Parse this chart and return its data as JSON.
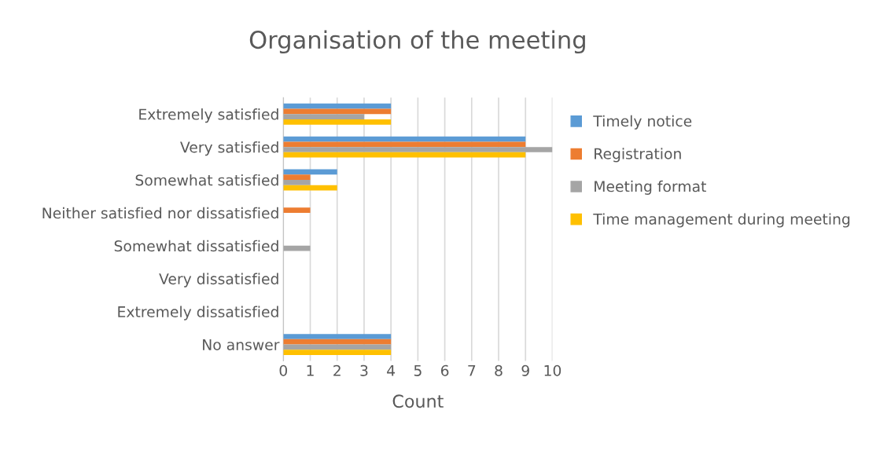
{
  "chart_data": {
    "type": "bar",
    "orientation": "horizontal",
    "title": "Organisation of the meeting",
    "xlabel": "Count",
    "categories": [
      "Extremely satisfied",
      "Very satisfied",
      "Somewhat satisfied",
      "Neither satisfied nor dissatisfied",
      "Somewhat dissatisfied",
      "Very dissatisfied",
      "Extremely dissatisfied",
      "No answer"
    ],
    "series": [
      {
        "name": "Timely notice",
        "color": "#5b9bd5",
        "values": [
          4,
          9,
          2,
          0,
          0,
          0,
          0,
          4
        ]
      },
      {
        "name": "Registration",
        "color": "#ed7d31",
        "values": [
          4,
          9,
          1,
          1,
          0,
          0,
          0,
          4
        ]
      },
      {
        "name": "Meeting format",
        "color": "#a5a5a5",
        "values": [
          3,
          10,
          1,
          0,
          1,
          0,
          0,
          4
        ]
      },
      {
        "name": "Time management during meeting",
        "color": "#ffc000",
        "values": [
          4,
          9,
          2,
          0,
          0,
          0,
          0,
          4
        ]
      }
    ],
    "xlim": [
      0,
      10
    ],
    "xticks": [
      0,
      1,
      2,
      3,
      4,
      5,
      6,
      7,
      8,
      9,
      10
    ],
    "grid": "x",
    "legend": "right"
  }
}
